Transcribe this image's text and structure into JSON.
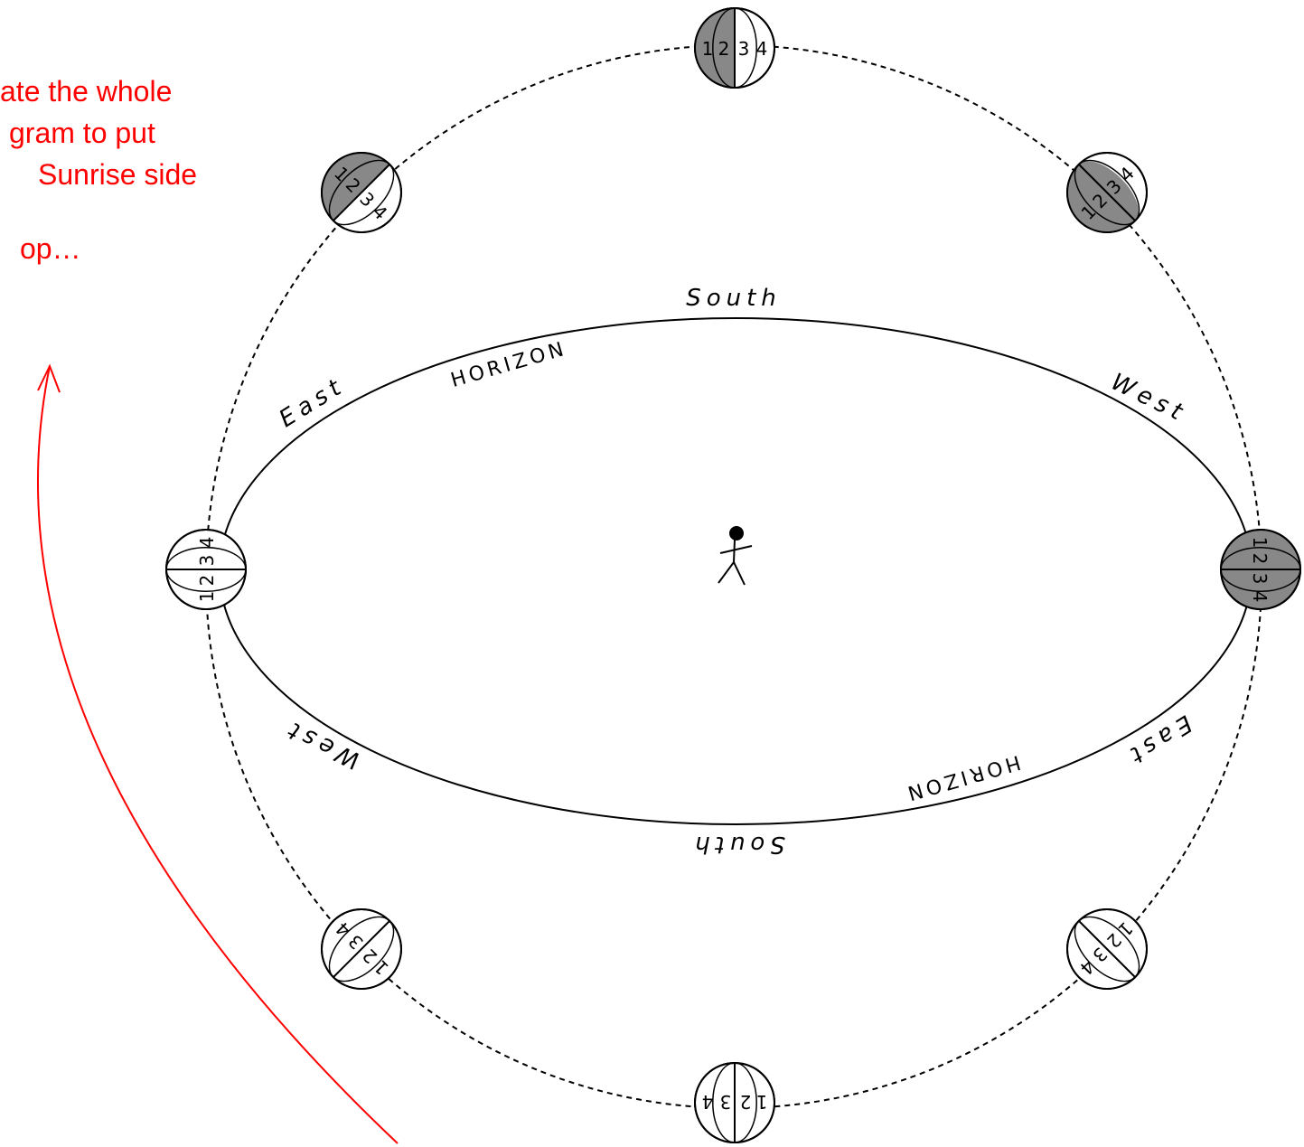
{
  "annotation": {
    "lines": [
      "ate the whole",
      "gram to put",
      "Sunrise side",
      "op…"
    ]
  },
  "labels": {
    "top": {
      "south": "South",
      "horizon": "HORIZON",
      "east": "East",
      "west": "West"
    },
    "bottom": {
      "south": "South",
      "horizon": "HORIZON",
      "east": "East",
      "west": "West"
    }
  },
  "moon_numbers": [
    "1",
    "2",
    "3",
    "4"
  ]
}
